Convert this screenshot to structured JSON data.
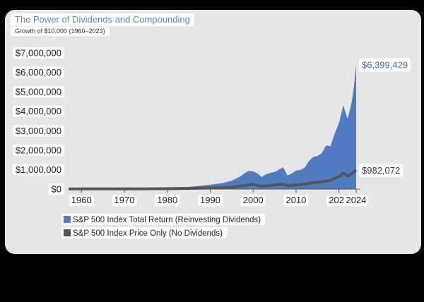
{
  "chart_data": {
    "type": "area",
    "title": "The Power of Dividends and Compounding",
    "subtitle": "Growth of $10,000 (1960–2023)",
    "xlabel": "",
    "ylabel": "",
    "xlim": [
      1957,
      2024
    ],
    "ylim": [
      0,
      7000000
    ],
    "x_ticks": [
      1960,
      1970,
      1980,
      1990,
      2000,
      2010,
      2020,
      2024
    ],
    "y_ticks": [
      0,
      1000000,
      2000000,
      3000000,
      4000000,
      5000000,
      6000000,
      7000000
    ],
    "y_tick_labels": [
      "$0",
      "$1,000,000",
      "$2,000,000",
      "$3,000,000",
      "$4,000,000",
      "$5,000,000",
      "$6,000,000",
      "$7,000,000"
    ],
    "grid": false,
    "legend_position": "bottom-left",
    "series": [
      {
        "name": "S&P 500 Index Total Return (Reinvesting Dividends)",
        "color": "#4f7cc0",
        "end_label": "$6,399,429",
        "points": [
          [
            1957,
            10000
          ],
          [
            1960,
            12000
          ],
          [
            1965,
            20000
          ],
          [
            1970,
            28000
          ],
          [
            1975,
            35000
          ],
          [
            1980,
            60000
          ],
          [
            1985,
            110000
          ],
          [
            1987,
            160000
          ],
          [
            1990,
            220000
          ],
          [
            1993,
            320000
          ],
          [
            1995,
            430000
          ],
          [
            1997,
            650000
          ],
          [
            1998,
            820000
          ],
          [
            1999,
            940000
          ],
          [
            2000,
            920000
          ],
          [
            2001,
            800000
          ],
          [
            2002,
            620000
          ],
          [
            2003,
            760000
          ],
          [
            2004,
            830000
          ],
          [
            2005,
            880000
          ],
          [
            2006,
            1000000
          ],
          [
            2007,
            1120000
          ],
          [
            2008,
            700000
          ],
          [
            2009,
            800000
          ],
          [
            2010,
            950000
          ],
          [
            2011,
            980000
          ],
          [
            2012,
            1100000
          ],
          [
            2013,
            1450000
          ],
          [
            2014,
            1650000
          ],
          [
            2015,
            1700000
          ],
          [
            2016,
            1850000
          ],
          [
            2017,
            2250000
          ],
          [
            2018,
            2200000
          ],
          [
            2019,
            2850000
          ],
          [
            2020,
            3400000
          ],
          [
            2021,
            4300000
          ],
          [
            2022,
            3600000
          ],
          [
            2023,
            4500000
          ],
          [
            2023.5,
            5300000
          ],
          [
            2024,
            6399429
          ]
        ]
      },
      {
        "name": "S&P 500 Index Price Only (No Dividends)",
        "color": "#555555",
        "end_label": "$982,072",
        "points": [
          [
            1957,
            10000
          ],
          [
            1965,
            14000
          ],
          [
            1970,
            15000
          ],
          [
            1975,
            15000
          ],
          [
            1980,
            22000
          ],
          [
            1985,
            35000
          ],
          [
            1990,
            55000
          ],
          [
            1995,
            95000
          ],
          [
            1998,
            190000
          ],
          [
            2000,
            240000
          ],
          [
            2002,
            150000
          ],
          [
            2004,
            190000
          ],
          [
            2007,
            250000
          ],
          [
            2008,
            170000
          ],
          [
            2009,
            190000
          ],
          [
            2012,
            250000
          ],
          [
            2014,
            330000
          ],
          [
            2016,
            370000
          ],
          [
            2018,
            450000
          ],
          [
            2019,
            560000
          ],
          [
            2020,
            640000
          ],
          [
            2021,
            820000
          ],
          [
            2022,
            660000
          ],
          [
            2023,
            800000
          ],
          [
            2024,
            982072
          ]
        ]
      }
    ]
  }
}
